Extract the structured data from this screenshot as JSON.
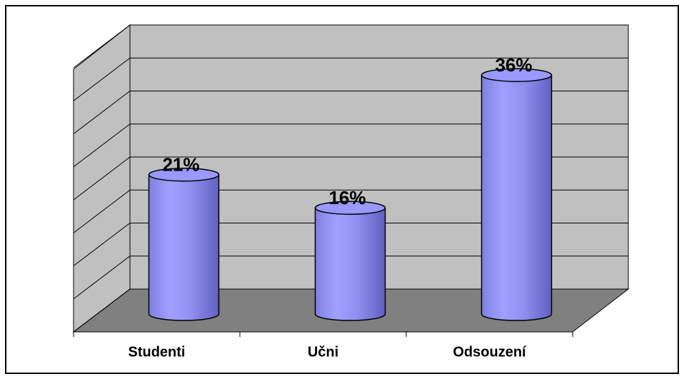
{
  "chart_data": {
    "type": "bar",
    "categories": [
      "Studenti",
      "Učni",
      "Odsouzení"
    ],
    "values": [
      21,
      16,
      36
    ],
    "value_labels": [
      "21%",
      "16%",
      "36%"
    ],
    "color": "#9999ff",
    "ylim": [
      0,
      40
    ],
    "yticks": [
      0,
      5,
      10,
      15,
      20,
      25,
      30,
      35,
      40
    ],
    "grid": true
  }
}
